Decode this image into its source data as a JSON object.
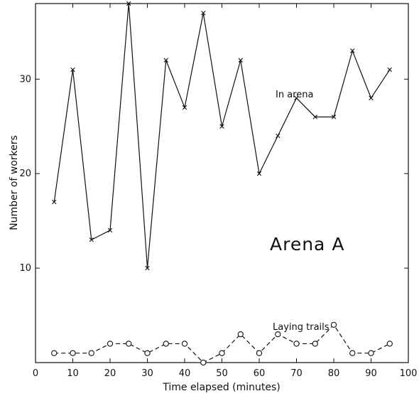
{
  "chart_data": {
    "type": "line",
    "xlabel": "Time  elapsed (minutes)",
    "ylabel": "Number of workers",
    "xlim": [
      0,
      100
    ],
    "ylim": [
      0,
      38
    ],
    "x_ticks": [
      0,
      10,
      20,
      30,
      40,
      50,
      60,
      70,
      80,
      90,
      100
    ],
    "y_ticks": [
      10,
      20,
      30
    ],
    "grid": false,
    "annotations": {
      "series_in_arena": "In arena",
      "series_laying_trails": "Laying trails",
      "panel": "Arena  A"
    },
    "series": [
      {
        "name": "In arena",
        "marker": "x",
        "line": "solid",
        "x": [
          5,
          10,
          15,
          20,
          25,
          30,
          35,
          40,
          45,
          50,
          55,
          60,
          65,
          70,
          75,
          80,
          85,
          90,
          95
        ],
        "values": [
          17,
          31,
          13,
          14,
          38,
          10,
          32,
          27,
          37,
          25,
          32,
          20,
          24,
          28,
          26,
          26,
          33,
          28,
          31
        ]
      },
      {
        "name": "Laying trails",
        "marker": "circle",
        "line": "dashed",
        "x": [
          5,
          10,
          15,
          20,
          25,
          30,
          35,
          40,
          45,
          50,
          55,
          60,
          65,
          70,
          75,
          80,
          85,
          90,
          95
        ],
        "values": [
          1,
          1,
          1,
          2,
          2,
          1,
          2,
          2,
          0,
          1,
          3,
          1,
          3,
          2,
          2,
          4,
          1,
          1,
          2
        ]
      }
    ]
  }
}
